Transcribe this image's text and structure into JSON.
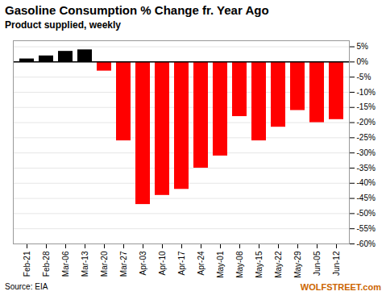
{
  "chart_data": {
    "type": "bar",
    "title": "Gasoline  Consumption  % Change fr. Year Ago",
    "subtitle": "Product supplied, weekly",
    "annotations": [
      "Source: EIA",
      "WOLFSTREET.com"
    ],
    "categories": [
      "Feb-21",
      "Feb-28",
      "Mar-06",
      "Mar-13",
      "Mar-20",
      "Mar-27",
      "Apr-03",
      "Apr-10",
      "Apr-17",
      "Apr-24",
      "May-01",
      "May-08",
      "May-15",
      "May-22",
      "May-29",
      "Jun-05",
      "Jun-12"
    ],
    "values": [
      1.0,
      2.0,
      3.5,
      4.0,
      -3.0,
      -26.0,
      -47.0,
      -44.0,
      -42.0,
      -35.0,
      -31.0,
      -18.0,
      -26.0,
      -21.5,
      -16.0,
      -20.0,
      -19.0
    ],
    "colors": [
      "#000000",
      "#000000",
      "#000000",
      "#000000",
      "#ff0000",
      "#ff0000",
      "#ff0000",
      "#ff0000",
      "#ff0000",
      "#ff0000",
      "#ff0000",
      "#ff0000",
      "#ff0000",
      "#ff0000",
      "#ff0000",
      "#ff0000",
      "#ff0000"
    ],
    "ylim": [
      -60,
      7
    ],
    "yticks": [
      {
        "value": 5,
        "label": "5%"
      },
      {
        "value": 0,
        "label": "0%"
      },
      {
        "value": -5,
        "label": "-5%"
      },
      {
        "value": -10,
        "label": "-10%"
      },
      {
        "value": -15,
        "label": "-15%"
      },
      {
        "value": -20,
        "label": "-20%"
      },
      {
        "value": -25,
        "label": "-25%"
      },
      {
        "value": -30,
        "label": "-30%"
      },
      {
        "value": -35,
        "label": "-35%"
      },
      {
        "value": -40,
        "label": "-40%"
      },
      {
        "value": -45,
        "label": "-45%"
      },
      {
        "value": -50,
        "label": "-50%"
      },
      {
        "value": -55,
        "label": "-55%"
      },
      {
        "value": -60,
        "label": "-60%"
      }
    ],
    "grid": true
  }
}
